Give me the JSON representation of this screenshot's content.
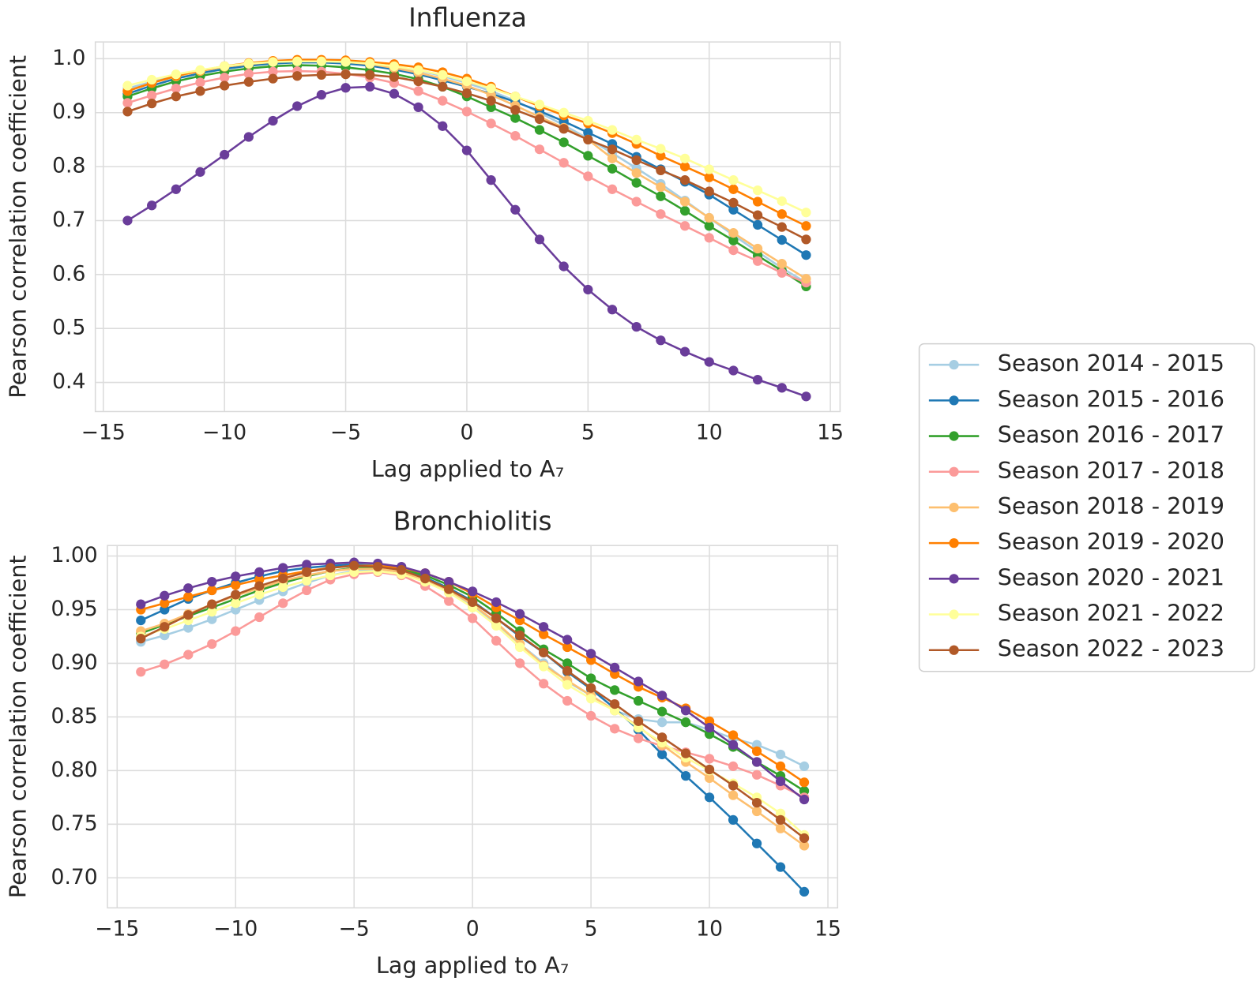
{
  "chart_data": [
    {
      "type": "line",
      "title": "Influenza",
      "xlabel": "Lag applied to A₇",
      "ylabel": "Pearson correlation coefficient",
      "grid": true,
      "x": [
        -14,
        -13,
        -12,
        -11,
        -10,
        -9,
        -8,
        -7,
        -6,
        -5,
        -4,
        -3,
        -2,
        -1,
        0,
        1,
        2,
        3,
        4,
        5,
        6,
        7,
        8,
        9,
        10,
        11,
        12,
        13,
        14
      ],
      "xlim": [
        -15.33,
        15.4
      ],
      "ylim": [
        0.346,
        1.031
      ],
      "xticks": [
        {
          "value": -15,
          "label": "−15"
        },
        {
          "value": -10,
          "label": "−10"
        },
        {
          "value": -5,
          "label": "−5"
        },
        0,
        5,
        10,
        15
      ],
      "yticks": [
        0.4,
        0.5,
        0.6,
        0.7,
        0.8,
        0.9,
        {
          "value": 1,
          "label": "1.0"
        }
      ],
      "series": [
        {
          "name": "Season 2014 - 2015",
          "color": "#a6cee3",
          "values": [
            0.945,
            0.957,
            0.968,
            0.977,
            0.984,
            0.989,
            0.992,
            0.994,
            0.994,
            0.993,
            0.99,
            0.985,
            0.978,
            0.968,
            0.955,
            0.94,
            0.922,
            0.9,
            0.877,
            0.852,
            0.825,
            0.797,
            0.768,
            0.737,
            0.705,
            0.673,
            0.642,
            0.612,
            0.585
          ]
        },
        {
          "name": "Season 2015 - 2016",
          "color": "#1f78b4",
          "values": [
            0.935,
            0.95,
            0.963,
            0.973,
            0.981,
            0.987,
            0.991,
            0.993,
            0.993,
            0.991,
            0.987,
            0.98,
            0.971,
            0.96,
            0.948,
            0.935,
            0.92,
            0.903,
            0.884,
            0.863,
            0.842,
            0.818,
            0.795,
            0.772,
            0.748,
            0.72,
            0.692,
            0.664,
            0.636
          ]
        },
        {
          "name": "Season 2016 - 2017",
          "color": "#33a02c",
          "values": [
            0.93,
            0.945,
            0.958,
            0.968,
            0.976,
            0.982,
            0.986,
            0.988,
            0.987,
            0.984,
            0.979,
            0.972,
            0.962,
            0.948,
            0.93,
            0.91,
            0.89,
            0.868,
            0.845,
            0.82,
            0.796,
            0.77,
            0.745,
            0.718,
            0.69,
            0.663,
            0.635,
            0.607,
            0.578
          ]
        },
        {
          "name": "Season 2017 - 2018",
          "color": "#fb9a99",
          "values": [
            0.918,
            0.932,
            0.945,
            0.956,
            0.965,
            0.972,
            0.976,
            0.977,
            0.976,
            0.972,
            0.965,
            0.955,
            0.94,
            0.922,
            0.902,
            0.88,
            0.857,
            0.832,
            0.807,
            0.782,
            0.758,
            0.735,
            0.712,
            0.69,
            0.668,
            0.645,
            0.625,
            0.603,
            0.585
          ]
        },
        {
          "name": "Season 2018 - 2019",
          "color": "#fdbf6f",
          "values": [
            0.94,
            0.955,
            0.967,
            0.977,
            0.985,
            0.99,
            0.994,
            0.996,
            0.996,
            0.994,
            0.99,
            0.983,
            0.974,
            0.963,
            0.95,
            0.933,
            0.913,
            0.892,
            0.872,
            0.85,
            0.815,
            0.788,
            0.762,
            0.735,
            0.705,
            0.677,
            0.648,
            0.62,
            0.592
          ]
        },
        {
          "name": "Season 2019 - 2020",
          "color": "#ff7f00",
          "values": [
            0.94,
            0.955,
            0.968,
            0.978,
            0.986,
            0.992,
            0.996,
            0.998,
            0.998,
            0.997,
            0.994,
            0.99,
            0.984,
            0.975,
            0.963,
            0.948,
            0.93,
            0.912,
            0.895,
            0.88,
            0.862,
            0.842,
            0.82,
            0.8,
            0.78,
            0.758,
            0.735,
            0.712,
            0.69
          ]
        },
        {
          "name": "Season 2020 - 2021",
          "color": "#6a3d9a",
          "values": [
            0.7,
            0.728,
            0.758,
            0.79,
            0.822,
            0.855,
            0.885,
            0.912,
            0.933,
            0.946,
            0.948,
            0.935,
            0.91,
            0.875,
            0.83,
            0.775,
            0.72,
            0.665,
            0.615,
            0.572,
            0.535,
            0.503,
            0.478,
            0.457,
            0.438,
            0.422,
            0.405,
            0.39,
            0.374
          ]
        },
        {
          "name": "Season 2021 - 2022",
          "color": "#ffff99",
          "values": [
            0.95,
            0.961,
            0.971,
            0.979,
            0.986,
            0.991,
            0.994,
            0.995,
            0.995,
            0.994,
            0.991,
            0.986,
            0.979,
            0.97,
            0.958,
            0.945,
            0.93,
            0.915,
            0.9,
            0.885,
            0.868,
            0.85,
            0.833,
            0.815,
            0.795,
            0.775,
            0.756,
            0.736,
            0.715
          ]
        },
        {
          "name": "Season 2022 - 2023",
          "color": "#b15928",
          "values": [
            0.902,
            0.917,
            0.93,
            0.94,
            0.95,
            0.957,
            0.963,
            0.968,
            0.97,
            0.971,
            0.97,
            0.966,
            0.958,
            0.948,
            0.936,
            0.922,
            0.905,
            0.888,
            0.87,
            0.85,
            0.832,
            0.812,
            0.793,
            0.775,
            0.754,
            0.733,
            0.71,
            0.688,
            0.665
          ]
        }
      ]
    },
    {
      "type": "line",
      "title": "Bronchiolitis",
      "xlabel": "Lag applied to A₇",
      "ylabel": "Pearson correlation coefficient",
      "grid": true,
      "x": [
        -14,
        -13,
        -12,
        -11,
        -10,
        -9,
        -8,
        -7,
        -6,
        -5,
        -4,
        -3,
        -2,
        -1,
        0,
        1,
        2,
        3,
        4,
        5,
        6,
        7,
        8,
        9,
        10,
        11,
        12,
        13,
        14
      ],
      "xlim": [
        -15.41,
        15.41
      ],
      "ylim": [
        0.672,
        1.0098
      ],
      "xticks": [
        {
          "value": -15,
          "label": "−15"
        },
        {
          "value": -10,
          "label": "−10"
        },
        {
          "value": -5,
          "label": "−5"
        },
        0,
        5,
        10,
        15
      ],
      "yticks": [
        {
          "value": 0.7,
          "label": "0.70"
        },
        {
          "value": 0.75,
          "label": "0.75"
        },
        {
          "value": 0.8,
          "label": "0.80"
        },
        {
          "value": 0.85,
          "label": "0.85"
        },
        {
          "value": 0.9,
          "label": "0.90"
        },
        {
          "value": 0.95,
          "label": "0.95"
        },
        {
          "value": 1,
          "label": "1.00"
        }
      ],
      "series": [
        {
          "color": "#a6cee3",
          "values": [
            0.92,
            0.926,
            0.933,
            0.941,
            0.95,
            0.959,
            0.967,
            0.975,
            0.982,
            0.986,
            0.988,
            0.985,
            0.977,
            0.966,
            0.953,
            0.937,
            0.918,
            0.9,
            0.883,
            0.87,
            0.856,
            0.848,
            0.845,
            0.845,
            0.838,
            0.83,
            0.824,
            0.815,
            0.804
          ]
        },
        {
          "color": "#1f78b4",
          "values": [
            0.94,
            0.95,
            0.96,
            0.968,
            0.975,
            0.981,
            0.986,
            0.989,
            0.991,
            0.992,
            0.991,
            0.987,
            0.98,
            0.97,
            0.958,
            0.942,
            0.925,
            0.91,
            0.892,
            0.876,
            0.858,
            0.838,
            0.815,
            0.795,
            0.775,
            0.754,
            0.732,
            0.71,
            0.687
          ]
        },
        {
          "color": "#33a02c",
          "values": [
            0.928,
            0.936,
            0.944,
            0.952,
            0.96,
            0.968,
            0.975,
            0.981,
            0.986,
            0.989,
            0.99,
            0.988,
            0.982,
            0.973,
            0.962,
            0.947,
            0.93,
            0.913,
            0.9,
            0.886,
            0.875,
            0.865,
            0.855,
            0.845,
            0.834,
            0.822,
            0.808,
            0.795,
            0.781
          ]
        },
        {
          "color": "#fb9a99",
          "values": [
            0.892,
            0.899,
            0.908,
            0.918,
            0.93,
            0.943,
            0.956,
            0.968,
            0.978,
            0.983,
            0.985,
            0.982,
            0.972,
            0.958,
            0.942,
            0.921,
            0.9,
            0.881,
            0.865,
            0.851,
            0.839,
            0.83,
            0.823,
            0.817,
            0.811,
            0.804,
            0.796,
            0.786,
            0.775
          ]
        },
        {
          "color": "#fdbf6f",
          "values": [
            0.93,
            0.937,
            0.946,
            0.955,
            0.963,
            0.97,
            0.977,
            0.982,
            0.986,
            0.988,
            0.988,
            0.985,
            0.978,
            0.968,
            0.955,
            0.938,
            0.918,
            0.898,
            0.884,
            0.87,
            0.856,
            0.841,
            0.824,
            0.808,
            0.793,
            0.777,
            0.762,
            0.746,
            0.73
          ]
        },
        {
          "color": "#ff7f00",
          "values": [
            0.95,
            0.956,
            0.962,
            0.968,
            0.973,
            0.978,
            0.982,
            0.986,
            0.989,
            0.991,
            0.991,
            0.989,
            0.984,
            0.976,
            0.965,
            0.952,
            0.94,
            0.927,
            0.915,
            0.903,
            0.89,
            0.878,
            0.868,
            0.858,
            0.846,
            0.833,
            0.818,
            0.804,
            0.789
          ]
        },
        {
          "color": "#6a3d9a",
          "values": [
            0.955,
            0.963,
            0.97,
            0.976,
            0.981,
            0.985,
            0.989,
            0.992,
            0.993,
            0.994,
            0.993,
            0.99,
            0.984,
            0.976,
            0.967,
            0.957,
            0.946,
            0.934,
            0.922,
            0.909,
            0.896,
            0.883,
            0.87,
            0.856,
            0.84,
            0.824,
            0.808,
            0.79,
            0.773
          ]
        },
        {
          "color": "#ffff99",
          "values": [
            0.925,
            0.932,
            0.94,
            0.948,
            0.956,
            0.964,
            0.971,
            0.977,
            0.982,
            0.985,
            0.986,
            0.983,
            0.976,
            0.966,
            0.952,
            0.935,
            0.915,
            0.897,
            0.88,
            0.867,
            0.856,
            0.84,
            0.826,
            0.812,
            0.8,
            0.788,
            0.775,
            0.76,
            0.74
          ]
        },
        {
          "color": "#b15928",
          "values": [
            0.923,
            0.934,
            0.945,
            0.955,
            0.964,
            0.972,
            0.979,
            0.985,
            0.989,
            0.991,
            0.99,
            0.987,
            0.979,
            0.969,
            0.957,
            0.942,
            0.926,
            0.91,
            0.893,
            0.877,
            0.862,
            0.846,
            0.831,
            0.816,
            0.801,
            0.786,
            0.77,
            0.754,
            0.737
          ]
        }
      ]
    }
  ]
}
